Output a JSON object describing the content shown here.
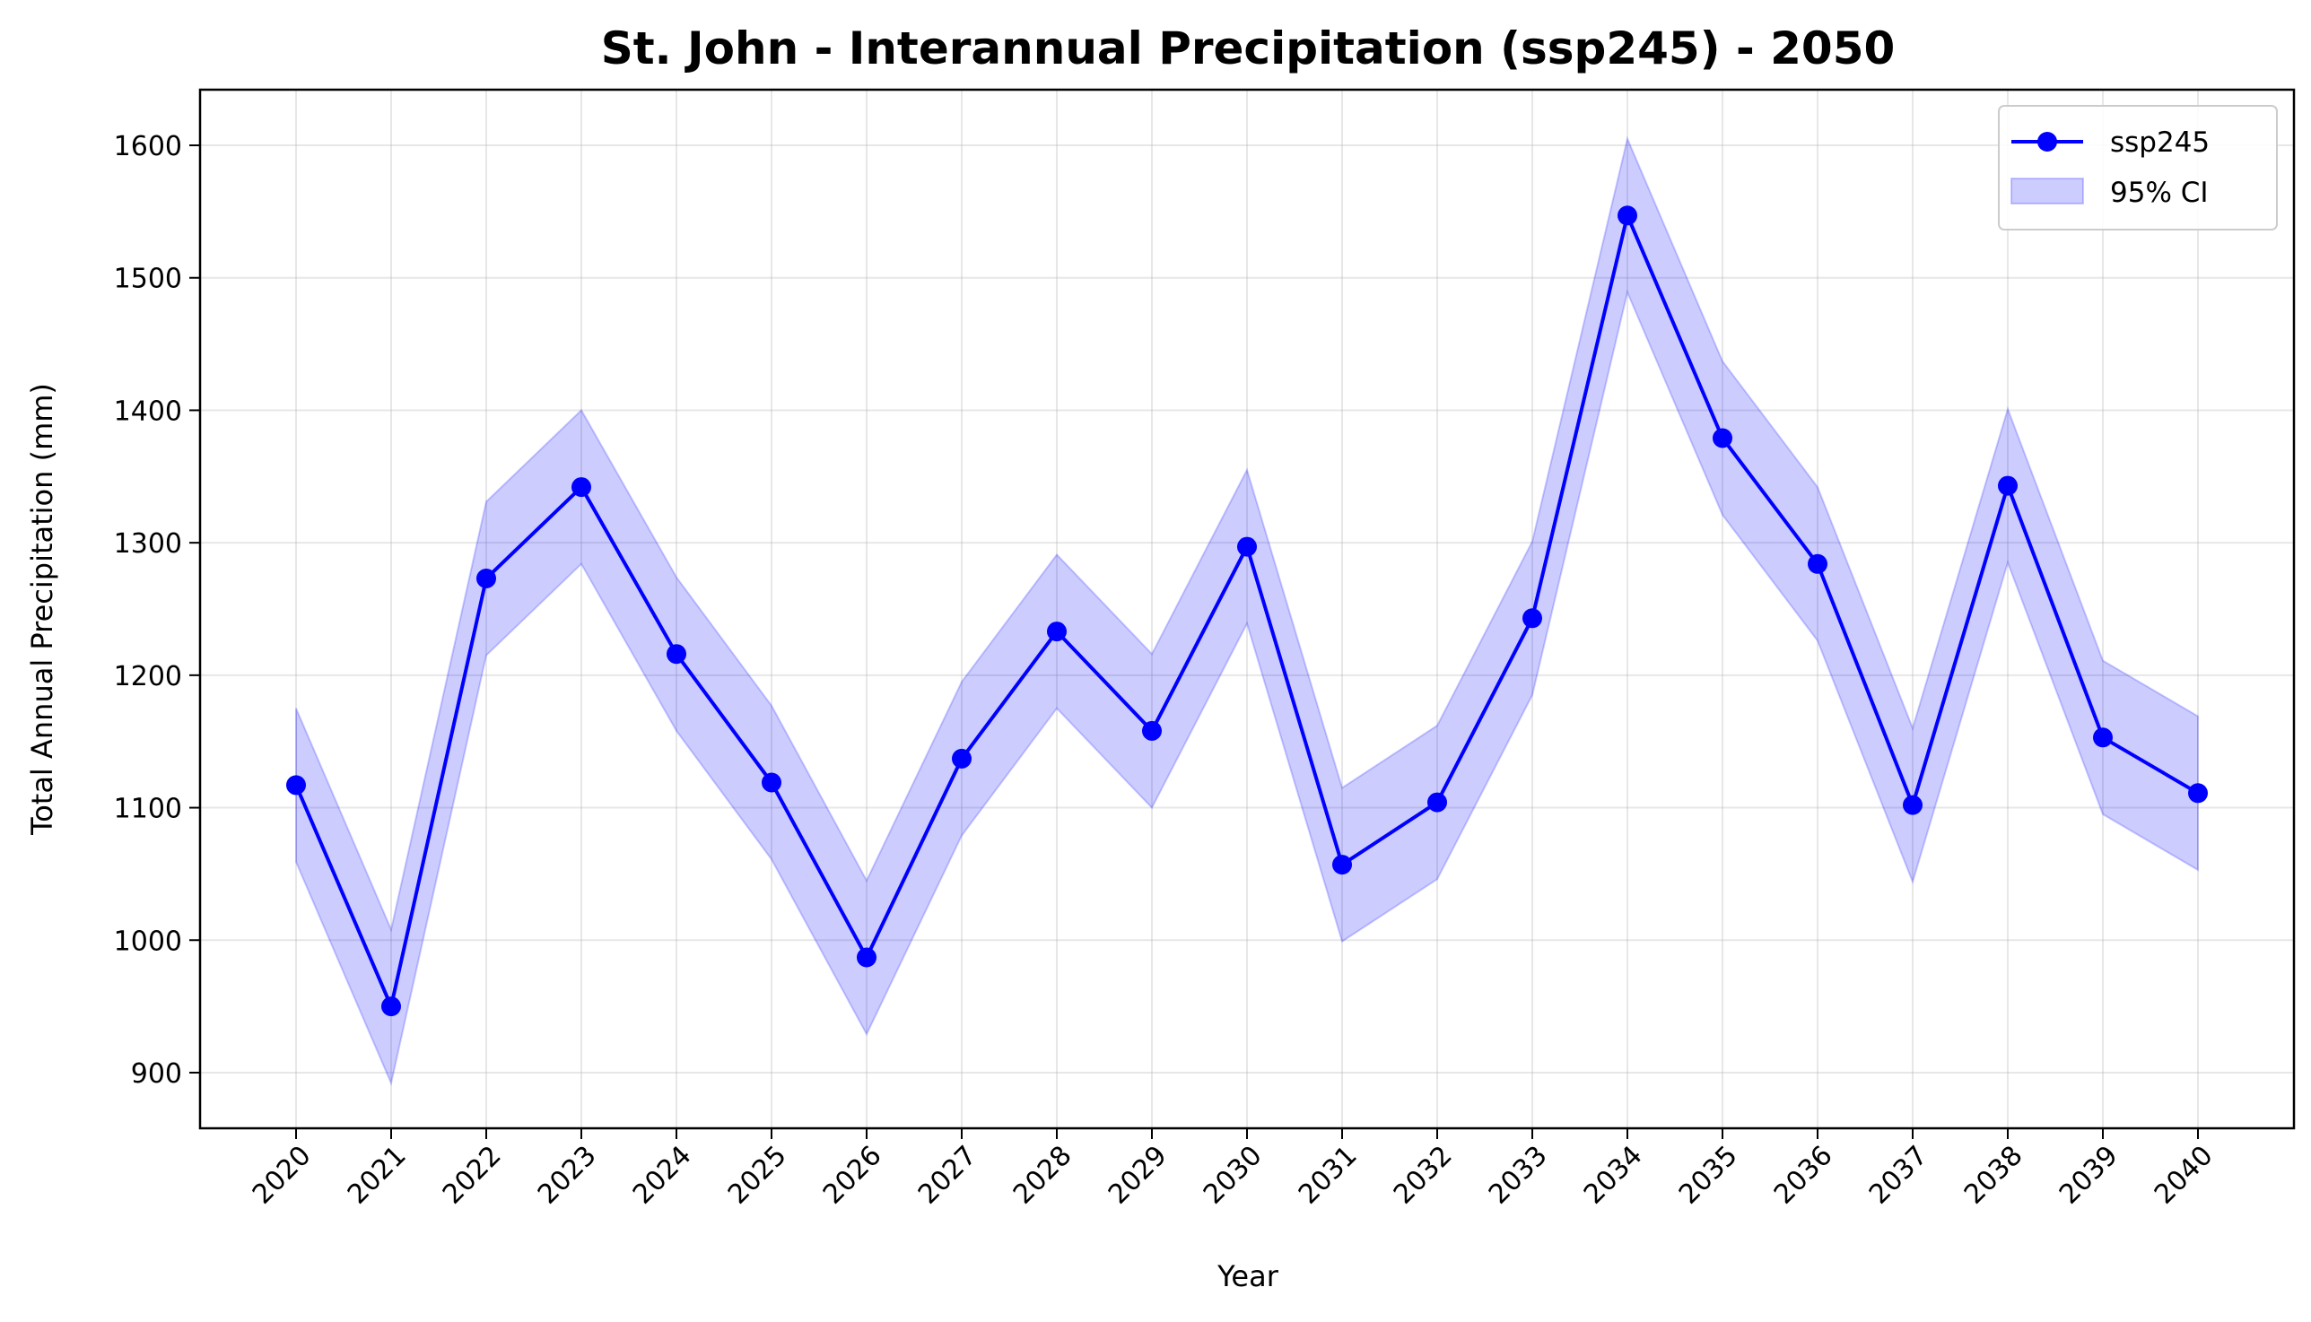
{
  "chart_data": {
    "type": "line",
    "title": "St. John - Interannual Precipitation (ssp245) - 2050",
    "xlabel": "Year",
    "ylabel": "Total Annual Precipitation (mm)",
    "x": [
      "2020",
      "2021",
      "2022",
      "2023",
      "2024",
      "2025",
      "2026",
      "2027",
      "2028",
      "2029",
      "2030",
      "2031",
      "2032",
      "2033",
      "2034",
      "2035",
      "2036",
      "2037",
      "2038",
      "2039",
      "2040"
    ],
    "series": [
      {
        "name": "ssp245",
        "color": "#0000ff",
        "values": [
          1117,
          950,
          1273,
          1342,
          1216,
          1119,
          987,
          1137,
          1233,
          1158,
          1297,
          1057,
          1104,
          1243,
          1547,
          1379,
          1284,
          1102,
          1343,
          1153,
          1111
        ]
      }
    ],
    "ci": {
      "name": "95% CI",
      "color": "#0000ff",
      "lower": [
        1059,
        892,
        1215,
        1284,
        1158,
        1061,
        929,
        1079,
        1175,
        1100,
        1239,
        999,
        1046,
        1185,
        1489,
        1321,
        1226,
        1044,
        1285,
        1095,
        1053
      ],
      "upper": [
        1175,
        1008,
        1331,
        1400,
        1274,
        1177,
        1045,
        1195,
        1291,
        1216,
        1355,
        1115,
        1162,
        1301,
        1605,
        1437,
        1342,
        1160,
        1401,
        1211,
        1169
      ]
    },
    "ylim": [
      858,
      1642
    ],
    "yticks": [
      900,
      1000,
      1100,
      1200,
      1300,
      1400,
      1500,
      1600
    ],
    "grid": true,
    "legend_position": "top-right"
  }
}
